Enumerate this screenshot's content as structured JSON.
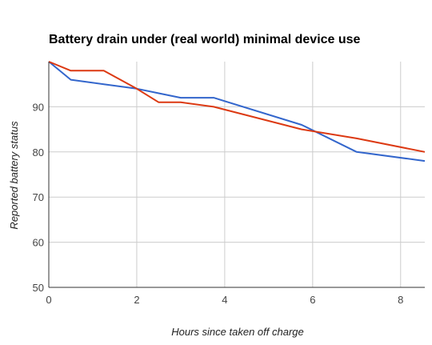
{
  "chart_data": {
    "type": "line",
    "title": "Battery drain under (real world) minimal device use",
    "xlabel": "Hours since taken off charge",
    "ylabel": "Reported battery status",
    "xlim": [
      0,
      8.55
    ],
    "ylim": [
      50,
      100
    ],
    "xticks": [
      0,
      2,
      4,
      6,
      8
    ],
    "yticks": [
      50,
      60,
      70,
      80,
      90
    ],
    "grid": true,
    "legend": "none",
    "series": [
      {
        "color": "#3366cc",
        "x": [
          0,
          0.5,
          1.25,
          2,
          2.5,
          3,
          3.75,
          5.75,
          7,
          8.55
        ],
        "y": [
          100,
          96,
          95,
          94,
          93,
          92,
          92,
          86,
          80,
          78
        ]
      },
      {
        "color": "#dc3912",
        "x": [
          0,
          0.5,
          1.25,
          2,
          2.5,
          3,
          3.75,
          5.75,
          7,
          8.55
        ],
        "y": [
          100,
          98,
          98,
          94,
          91,
          91,
          90,
          85,
          83,
          80
        ]
      }
    ]
  }
}
